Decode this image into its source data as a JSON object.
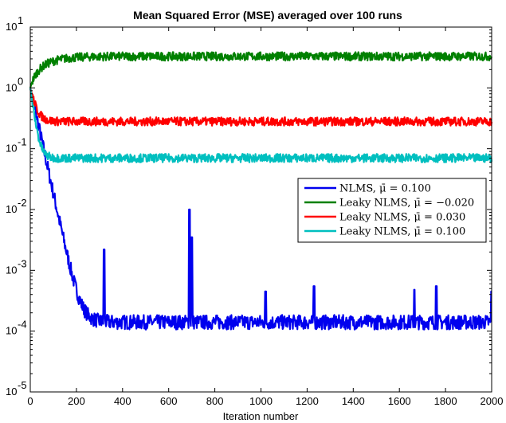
{
  "chart_data": {
    "type": "line",
    "title": "Mean Squared Error (MSE) averaged over 100 runs",
    "xlabel": "Iteration number",
    "ylabel": "",
    "xlim": [
      0,
      2000
    ],
    "ylim": [
      1e-05,
      10
    ],
    "yscale": "log",
    "grid": false,
    "legend_position": "right",
    "x_ticks": [
      0,
      200,
      400,
      600,
      800,
      1000,
      1200,
      1400,
      1600,
      1800,
      2000
    ],
    "x_tick_labels": [
      "0",
      "200",
      "400",
      "600",
      "800",
      "1000",
      "1200",
      "1400",
      "1600",
      "1800",
      "2000"
    ],
    "y_tick_exponents": [
      -5,
      -4,
      -3,
      -2,
      -1,
      0,
      1
    ],
    "y_tick_base": "10",
    "series": [
      {
        "name": "NLMS, μ̄ = 0.100",
        "color": "#0000ee",
        "start": 1.0,
        "steady": 0.00014,
        "decay": 25,
        "noise_decades": 0.12,
        "spikes": [
          [
            140,
            0.002
          ],
          [
            320,
            0.0022
          ],
          [
            690,
            0.01
          ],
          [
            700,
            0.0035
          ],
          [
            1020,
            0.00045
          ],
          [
            1230,
            0.00055
          ],
          [
            1665,
            0.00048
          ],
          [
            1760,
            0.00055
          ],
          [
            2000,
            0.00045
          ]
        ]
      },
      {
        "name": "Leaky NLMS, μ̄ = −0.020",
        "color": "#008000",
        "start": 1.0,
        "steady": 3.3,
        "decay": 70,
        "noise_decades": 0.07,
        "spikes": []
      },
      {
        "name": "Leaky NLMS, μ̄ = 0.030",
        "color": "#ff0000",
        "start": 1.0,
        "steady": 0.28,
        "decay": 20,
        "noise_decades": 0.07,
        "spikes": []
      },
      {
        "name": "Leaky NLMS, μ̄ = 0.100",
        "color": "#00bfbf",
        "start": 1.0,
        "steady": 0.07,
        "decay": 15,
        "noise_decades": 0.07,
        "spikes": []
      }
    ]
  }
}
